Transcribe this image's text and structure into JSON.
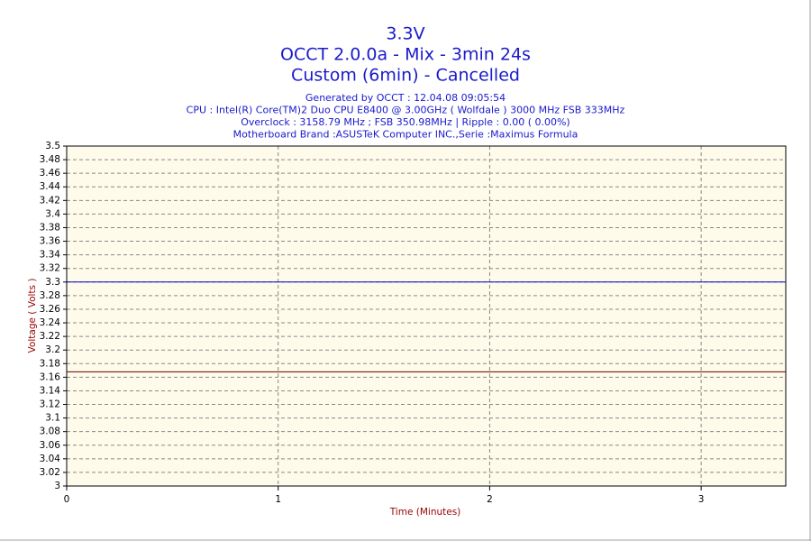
{
  "chart_data": {
    "type": "line",
    "title": [
      "3.3V",
      "OCCT 2.0.0a - Mix - 3min 24s",
      "Custom (6min) - Cancelled"
    ],
    "subtitle": [
      "Generated by OCCT : 12.04.08 09:05:54",
      "CPU : Intel(R) Core(TM)2 Duo CPU E8400 @ 3.00GHz ( Wolfdale ) 3000 MHz FSB 333MHz",
      "Overclock : 3158.79 MHz ; FSB 350.98MHz | Ripple : 0.00 ( 0.00%)",
      "Motherboard Brand :ASUSTeK Computer INC.,Serie :Maximus Formula"
    ],
    "x_label": "Time (Minutes)",
    "y_label": "Voltage ( Volts )",
    "x": [
      0,
      3.4
    ],
    "series": [
      {
        "color": "#0000cc",
        "values": [
          3.3,
          3.3
        ]
      },
      {
        "color": "#660000",
        "values": [
          3.168,
          3.168
        ]
      }
    ],
    "xlim": [
      0,
      3.4
    ],
    "xticks": [
      0,
      1,
      2,
      3
    ],
    "ylim": [
      3,
      3.5
    ],
    "yticks": [
      3,
      3.02,
      3.04,
      3.06,
      3.08,
      3.1,
      3.12,
      3.14,
      3.16,
      3.18,
      3.2,
      3.22,
      3.24,
      3.26,
      3.28,
      3.3,
      3.32,
      3.34,
      3.36,
      3.38,
      3.4,
      3.42,
      3.44,
      3.46,
      3.48,
      3.5
    ],
    "grid": true
  }
}
